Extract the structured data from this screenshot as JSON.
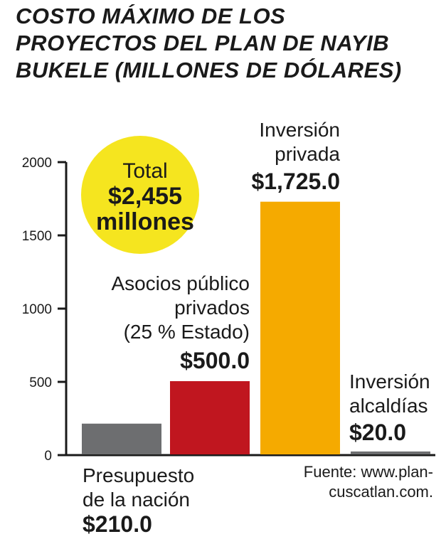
{
  "title_lines": [
    "COSTO MÁXIMO DE LOS",
    "PROYECTOS DEL PLAN DE NAYIB",
    "BUKELE (MILLONES DE DÓLARES)"
  ],
  "total": {
    "line1": "Total",
    "line2": "$2,455",
    "line3": "millones",
    "color": "#f5e51f"
  },
  "source": {
    "line1": "Fuente: www.plan-",
    "line2": "cuscatlan.com."
  },
  "chart_data": {
    "type": "bar",
    "ylim": [
      0,
      2000
    ],
    "yticks": [
      0,
      500,
      1000,
      1500,
      2000
    ],
    "ytick_labels": [
      "0",
      "500",
      "1000",
      "1500",
      "2000"
    ],
    "categories": [
      "Presupuesto de la nación",
      "Asocios público privados (25 % Estado)",
      "Inversión privada",
      "Inversión alcaldías"
    ],
    "category_lines": [
      [
        "Presupuesto",
        "de la nación"
      ],
      [
        "Asocios público",
        "privados",
        "(25 % Estado)"
      ],
      [
        "Inversión",
        "privada"
      ],
      [
        "Inversión",
        "alcaldías"
      ]
    ],
    "values": [
      210.0,
      500.0,
      1725.0,
      20.0
    ],
    "value_labels": [
      "$210.0",
      "$500.0",
      "$1,725.0",
      "$20.0"
    ],
    "colors": [
      "#6d6e70",
      "#c0161f",
      "#f5aa00",
      "#6d6e70"
    ]
  }
}
